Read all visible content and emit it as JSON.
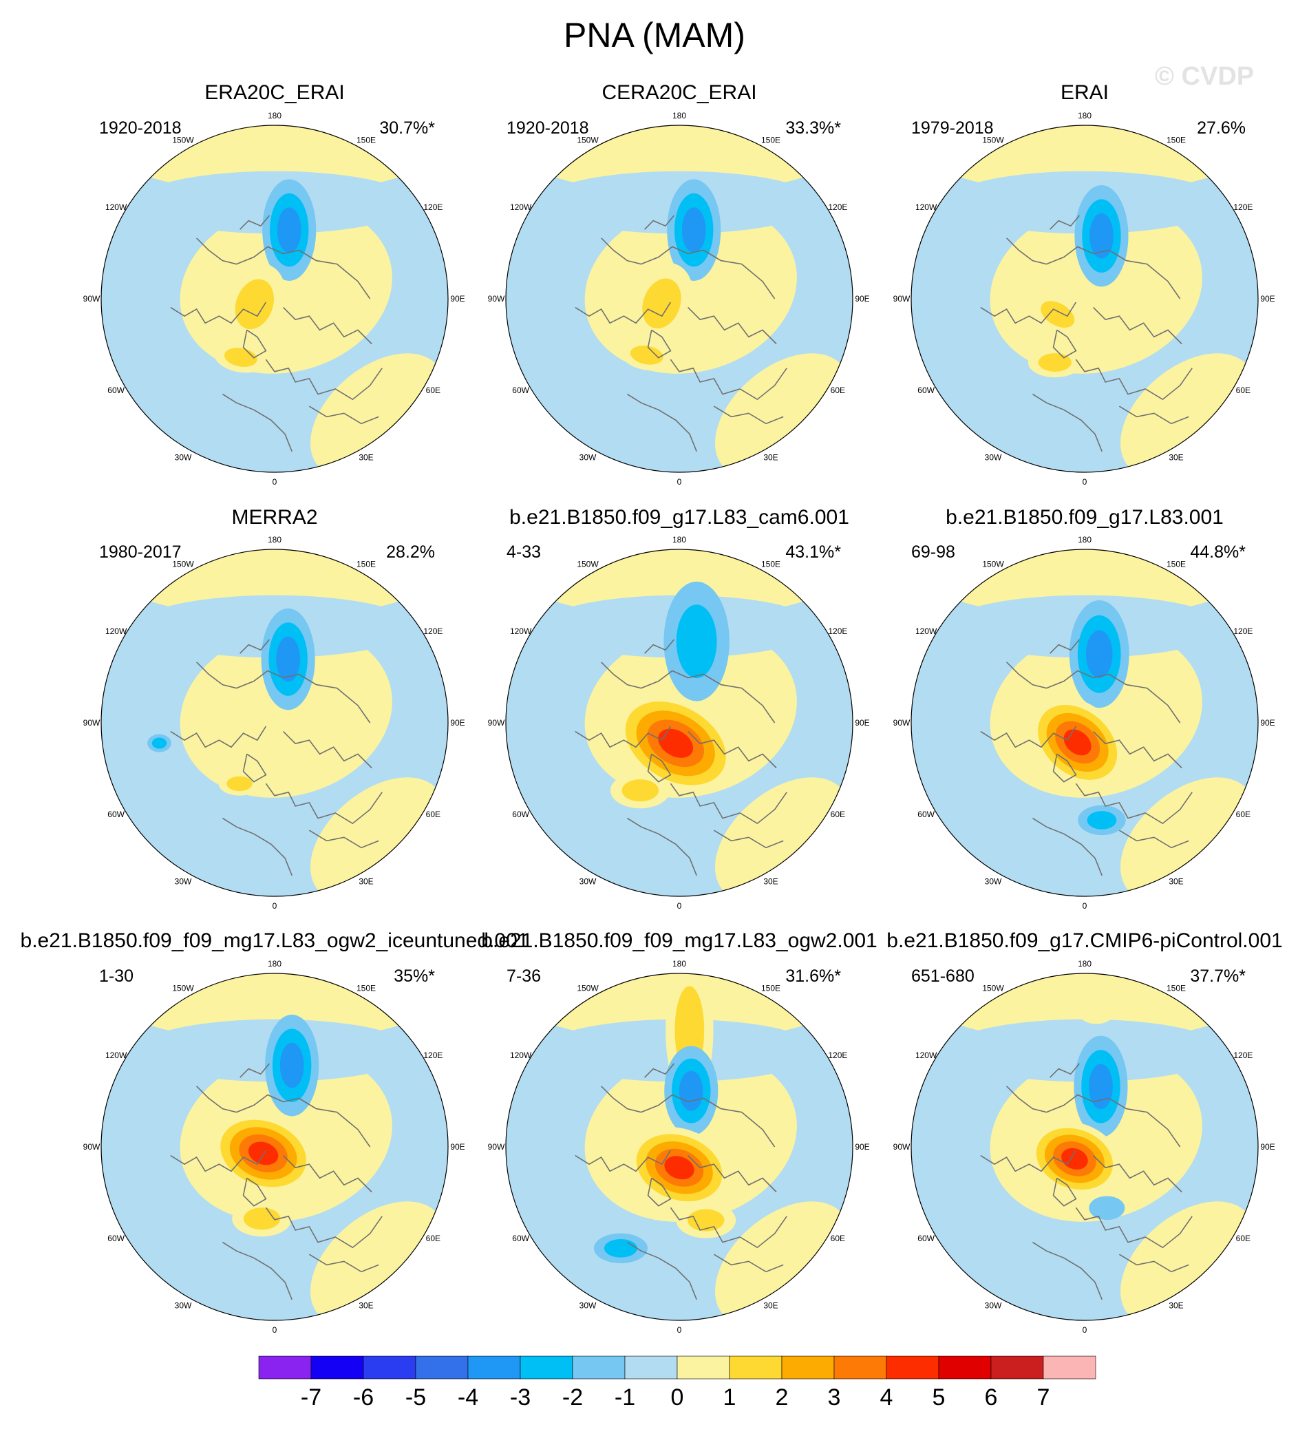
{
  "title": "PNA (MAM)",
  "watermark": "© CVDP",
  "colors": {
    "map_background": "#b2dcf2",
    "coastline": "#707070",
    "outline": "#000000"
  },
  "chart_data": {
    "type": "heatmap",
    "projection": "north-polar-stereographic",
    "variable": "PNA regression pattern (MAM)",
    "longitude_labels": [
      "180",
      "150E",
      "120E",
      "90E",
      "60E",
      "30E",
      "0",
      "30W",
      "60W",
      "90W",
      "120W",
      "150W"
    ],
    "colorbar": {
      "labels": [
        "-7",
        "-6",
        "-5",
        "-4",
        "-3",
        "-2",
        "-1",
        "0",
        "1",
        "2",
        "3",
        "4",
        "5",
        "6",
        "7"
      ],
      "colors": [
        "#8b23f0",
        "#1400f5",
        "#2a3df0",
        "#3371ea",
        "#1f97f5",
        "#00bff5",
        "#76c7f2",
        "#b2dcf2",
        "#fbf3a0",
        "#fdd931",
        "#fdab00",
        "#fd7a06",
        "#fe2d00",
        "#e10000",
        "#cb1f1f",
        "#fcb5b5"
      ]
    },
    "panels": [
      {
        "title": "ERA20C_ERAI",
        "years": "1920-2018",
        "variance": "30.7%*",
        "patterns": [
          {
            "lon": 168,
            "colat": 27,
            "a": 17,
            "b": 9,
            "rot": 90,
            "level": -3
          },
          {
            "lon": 285,
            "colat": 8,
            "a": 10,
            "b": 14,
            "rot": 20,
            "level": 2
          },
          {
            "lon": 330,
            "colat": 26,
            "a": 9,
            "b": 5,
            "rot": 10,
            "level": 2
          },
          {
            "lon": 110,
            "colat": 40,
            "a": 5,
            "b": 3,
            "rot": 0,
            "level": 0
          }
        ]
      },
      {
        "title": "CERA20C_ERAI",
        "years": "1920-2018",
        "variance": "33.3%*",
        "patterns": [
          {
            "lon": 168,
            "colat": 27,
            "a": 17,
            "b": 9,
            "rot": 90,
            "level": -3
          },
          {
            "lon": 285,
            "colat": 7,
            "a": 10,
            "b": 14,
            "rot": 20,
            "level": 2
          },
          {
            "lon": 330,
            "colat": 25,
            "a": 9,
            "b": 5,
            "rot": 10,
            "level": 2
          }
        ]
      },
      {
        "title": "ERAI",
        "years": "1979-2018",
        "variance": "27.6%",
        "patterns": [
          {
            "lon": 165,
            "colat": 25,
            "a": 17,
            "b": 9,
            "rot": 90,
            "level": -3
          },
          {
            "lon": 300,
            "colat": 12,
            "a": 10,
            "b": 6,
            "rot": 30,
            "level": 2
          },
          {
            "lon": 335,
            "colat": 27,
            "a": 9,
            "b": 5,
            "rot": 0,
            "level": 2
          }
        ]
      },
      {
        "title": "MERRA2",
        "years": "1980-2017",
        "variance": "28.2%",
        "patterns": [
          {
            "lon": 168,
            "colat": 25,
            "a": 17,
            "b": 9,
            "rot": 90,
            "level": -3
          },
          {
            "lon": 330,
            "colat": 27,
            "a": 7,
            "b": 4,
            "rot": 0,
            "level": 2
          },
          {
            "lon": 280,
            "colat": 45,
            "a": 4,
            "b": 3,
            "rot": 0,
            "level": -2
          }
        ]
      },
      {
        "title": "b.e21.B1850.f09_g17.L83_cam6.001",
        "years": "4-33",
        "variance": "43.1%*",
        "patterns": [
          {
            "lon": 168,
            "colat": 32,
            "a": 20,
            "b": 11,
            "rot": 90,
            "level": -2
          },
          {
            "lon": 350,
            "colat": 8,
            "a": 22,
            "b": 15,
            "rot": 30,
            "level": 5
          },
          {
            "lon": 330,
            "colat": 30,
            "a": 10,
            "b": 6,
            "rot": 0,
            "level": 2
          }
        ]
      },
      {
        "title": "b.e21.B1850.f09_g17.L83.001",
        "years": "69-98",
        "variance": "44.8%*",
        "patterns": [
          {
            "lon": 168,
            "colat": 27,
            "a": 18,
            "b": 10,
            "rot": 90,
            "level": -3
          },
          {
            "lon": 340,
            "colat": 8,
            "a": 18,
            "b": 13,
            "rot": 40,
            "level": 5
          },
          {
            "lon": 10,
            "colat": 38,
            "a": 8,
            "b": 5,
            "rot": 0,
            "level": -2
          }
        ]
      },
      {
        "title": "b.e21.B1850.f09_f09_mg17.L83_ogw2_iceuntuned.001",
        "years": "1-30",
        "variance": "35%*",
        "patterns": [
          {
            "lon": 168,
            "colat": 32,
            "a": 17,
            "b": 9,
            "rot": 90,
            "level": -3
          },
          {
            "lon": 300,
            "colat": 5,
            "a": 18,
            "b": 13,
            "rot": 20,
            "level": 5
          },
          {
            "lon": 350,
            "colat": 28,
            "a": 10,
            "b": 6,
            "rot": 0,
            "level": 2
          }
        ]
      },
      {
        "title": "b.e21.B1850.f09_f09_mg17.L83_ogw2.001",
        "years": "7-36",
        "variance": "31.6%*",
        "patterns": [
          {
            "lon": 175,
            "colat": 45,
            "a": 24,
            "b": 8,
            "rot": 90,
            "level": 2
          },
          {
            "lon": 168,
            "colat": 22,
            "a": 15,
            "b": 9,
            "rot": 90,
            "level": -3
          },
          {
            "lon": 0,
            "colat": 8,
            "a": 18,
            "b": 13,
            "rot": 20,
            "level": 5
          },
          {
            "lon": 330,
            "colat": 45,
            "a": 9,
            "b": 5,
            "rot": 0,
            "level": -2
          },
          {
            "lon": 20,
            "colat": 30,
            "a": 10,
            "b": 6,
            "rot": 0,
            "level": 2
          }
        ]
      },
      {
        "title": "b.e21.B1850.f09_g17.CMIP6-piControl.001",
        "years": "651-680",
        "variance": "37.7%*",
        "patterns": [
          {
            "lon": 175,
            "colat": 52,
            "a": 6,
            "b": 4,
            "rot": 0,
            "level": 1
          },
          {
            "lon": 165,
            "colat": 24,
            "a": 17,
            "b": 9,
            "rot": 90,
            "level": -3
          },
          {
            "lon": 320,
            "colat": 6,
            "a": 16,
            "b": 12,
            "rot": 20,
            "level": 5
          },
          {
            "lon": 20,
            "colat": 25,
            "a": 6,
            "b": 4,
            "rot": 0,
            "level": -1
          }
        ]
      }
    ]
  }
}
